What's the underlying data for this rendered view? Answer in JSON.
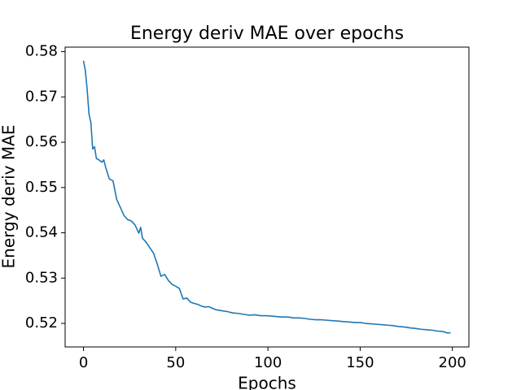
{
  "chart_data": {
    "type": "line",
    "title": "Energy deriv MAE over epochs",
    "x_label": "Epochs",
    "y_label": "Energy deriv MAE",
    "x": [
      0,
      1,
      2,
      3,
      4,
      5,
      6,
      7,
      8,
      10,
      11,
      12,
      14,
      16,
      18,
      20,
      22,
      24,
      26,
      28,
      30,
      31,
      32,
      34,
      36,
      38,
      40,
      42,
      44,
      46,
      48,
      50,
      52,
      54,
      56,
      58,
      60,
      62,
      64,
      66,
      68,
      70,
      72,
      75,
      78,
      81,
      84,
      87,
      90,
      93,
      96,
      99,
      102,
      105,
      108,
      111,
      114,
      117,
      120,
      123,
      126,
      129,
      132,
      135,
      138,
      141,
      144,
      147,
      150,
      153,
      156,
      159,
      162,
      165,
      168,
      171,
      174,
      177,
      180,
      183,
      186,
      189,
      192,
      195,
      197,
      199
    ],
    "series": [
      {
        "name": "Energy deriv MAE",
        "color": "#1f77b4",
        "values": [
          0.578,
          0.5759,
          0.5716,
          0.5662,
          0.5644,
          0.5585,
          0.559,
          0.5564,
          0.5562,
          0.5556,
          0.5561,
          0.5545,
          0.5519,
          0.5515,
          0.5474,
          0.5456,
          0.5438,
          0.5429,
          0.5426,
          0.5417,
          0.5399,
          0.5412,
          0.5388,
          0.5379,
          0.5367,
          0.5355,
          0.5331,
          0.5304,
          0.5308,
          0.5295,
          0.5286,
          0.5282,
          0.5277,
          0.5254,
          0.5256,
          0.5247,
          0.5244,
          0.5242,
          0.5238,
          0.5236,
          0.5237,
          0.5233,
          0.523,
          0.5228,
          0.5226,
          0.5223,
          0.5222,
          0.522,
          0.5218,
          0.5219,
          0.5217,
          0.5217,
          0.5216,
          0.5215,
          0.5214,
          0.5214,
          0.5212,
          0.5212,
          0.5211,
          0.5209,
          0.5208,
          0.5208,
          0.5207,
          0.5206,
          0.5205,
          0.5204,
          0.5203,
          0.5202,
          0.5202,
          0.52,
          0.5199,
          0.5198,
          0.5197,
          0.5196,
          0.5195,
          0.5193,
          0.5192,
          0.519,
          0.5189,
          0.5187,
          0.5186,
          0.5185,
          0.5183,
          0.5182,
          0.5179,
          0.5179
        ]
      }
    ],
    "xlim": [
      -9.95,
      208.95
    ],
    "ylim": [
      0.5148,
      0.581
    ],
    "xticks": [
      0,
      50,
      100,
      150,
      200
    ],
    "yticks": [
      0.52,
      0.53,
      0.54,
      0.55,
      0.56,
      0.57,
      0.58
    ],
    "grid": false
  }
}
